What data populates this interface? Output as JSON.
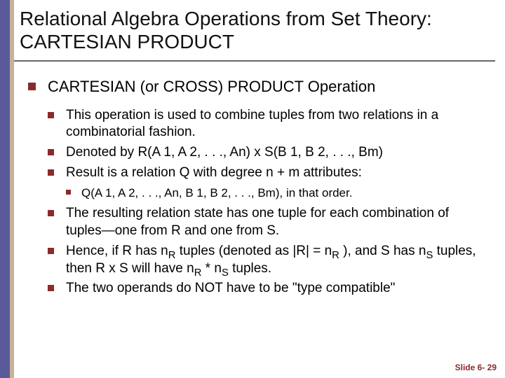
{
  "colors": {
    "bullet": "#8a2a2a",
    "left_rail": "#5a5a9a",
    "left_rail_inner": "#c7b299",
    "title_rule": "#666666",
    "footer_text": "#8a2a2a",
    "body_text": "#000000",
    "background": "#ffffff"
  },
  "typography": {
    "title_fontsize": 28,
    "l1_fontsize": 22,
    "l2_fontsize": 19,
    "l3_fontsize": 17,
    "footer_fontsize": 12,
    "font_family": "Arial"
  },
  "title": "Relational Algebra Operations from Set Theory: CARTESIAN PRODUCT",
  "content": {
    "l1_0": "CARTESIAN (or CROSS) PRODUCT Operation",
    "l2_0": "This operation is used to combine tuples from two relations in a combinatorial fashion.",
    "l2_1": "Denoted by R(A 1, A 2, . . ., An) x S(B 1, B 2, . . ., Bm)",
    "l2_2": "Result is a relation Q with degree n + m attributes:",
    "l3_0": "Q(A 1, A 2, . . ., An, B 1, B 2, . . ., Bm), in that order.",
    "l2_3": "The resulting relation state has one tuple for each combination of tuples—one from R and one from S.",
    "l2_4_pre": "Hence, if R has n",
    "l2_4_sub1": "R",
    "l2_4_mid1": " tuples (denoted as |R| = n",
    "l2_4_sub2": "R",
    "l2_4_mid2": " ), and S has n",
    "l2_4_sub3": "S",
    "l2_4_mid3": " tuples, then R x S will have n",
    "l2_4_sub4": "R",
    "l2_4_mid4": " * n",
    "l2_4_sub5": "S",
    "l2_4_post": " tuples.",
    "l2_5": "The two operands do NOT have to be \"type compatible\""
  },
  "footer": "Slide 6- 29"
}
